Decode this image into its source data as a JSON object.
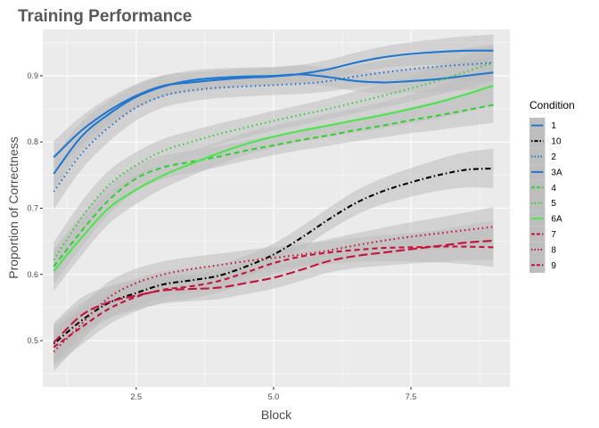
{
  "chart_data": {
    "type": "line",
    "title": "Training Performance",
    "xlabel": "Block",
    "ylabel": "Proportion of Correctness",
    "xlim": [
      0.8,
      9.3
    ],
    "ylim": [
      0.43,
      0.97
    ],
    "x_ticks": [
      {
        "value": 2.5,
        "label": "2.5"
      },
      {
        "value": 5.0,
        "label": "5.0"
      },
      {
        "value": 7.5,
        "label": "7.5"
      }
    ],
    "y_ticks": [
      {
        "value": 0.5,
        "label": "0.5"
      },
      {
        "value": 0.6,
        "label": "0.6"
      },
      {
        "value": 0.7,
        "label": "0.7"
      },
      {
        "value": 0.8,
        "label": "0.8"
      },
      {
        "value": 0.9,
        "label": "0.9"
      }
    ],
    "grid": true,
    "panel_background": "#ebebeb",
    "ribbon_color": "#bebebe",
    "legend": {
      "title": "Condition",
      "position": "right"
    },
    "x": [
      1,
      1.5,
      2,
      2.5,
      3,
      3.5,
      4,
      4.5,
      5,
      5.5,
      6,
      6.5,
      7,
      7.5,
      8,
      8.5,
      9
    ],
    "series": [
      {
        "name": "1",
        "color": "#1f78d1",
        "dash": "solid",
        "ci": 0.018,
        "values": [
          0.752,
          0.808,
          0.842,
          0.868,
          0.884,
          0.893,
          0.897,
          0.899,
          0.9,
          0.902,
          0.898,
          0.892,
          0.89,
          0.892,
          0.895,
          0.9,
          0.905
        ]
      },
      {
        "name": "10",
        "color": "#000000",
        "dash": "dotdash",
        "ci": 0.022,
        "values": [
          0.495,
          0.53,
          0.557,
          0.572,
          0.585,
          0.591,
          0.598,
          0.612,
          0.63,
          0.655,
          0.683,
          0.708,
          0.726,
          0.739,
          0.75,
          0.758,
          0.76
        ]
      },
      {
        "name": "2",
        "color": "#1f78d1",
        "dash": "dotted",
        "ci": 0.02,
        "values": [
          0.725,
          0.782,
          0.822,
          0.852,
          0.87,
          0.878,
          0.882,
          0.884,
          0.886,
          0.888,
          0.892,
          0.899,
          0.905,
          0.91,
          0.914,
          0.917,
          0.92
        ]
      },
      {
        "name": "3A",
        "color": "#1f78d1",
        "dash": "solid",
        "ci": 0.018,
        "values": [
          0.777,
          0.817,
          0.847,
          0.87,
          0.885,
          0.89,
          0.894,
          0.897,
          0.899,
          0.903,
          0.91,
          0.92,
          0.928,
          0.933,
          0.936,
          0.938,
          0.938
        ]
      },
      {
        "name": "4",
        "color": "#33d133",
        "dash": "dashed",
        "ci": 0.02,
        "values": [
          0.612,
          0.665,
          0.712,
          0.745,
          0.762,
          0.77,
          0.778,
          0.787,
          0.795,
          0.803,
          0.81,
          0.818,
          0.825,
          0.833,
          0.84,
          0.848,
          0.856
        ]
      },
      {
        "name": "5",
        "color": "#33d133",
        "dash": "dotted",
        "ci": 0.02,
        "values": [
          0.622,
          0.685,
          0.735,
          0.765,
          0.787,
          0.8,
          0.812,
          0.822,
          0.832,
          0.841,
          0.85,
          0.86,
          0.87,
          0.881,
          0.893,
          0.906,
          0.92
        ]
      },
      {
        "name": "6A",
        "color": "#4ce64c",
        "dash": "solid",
        "ci": 0.022,
        "values": [
          0.605,
          0.655,
          0.7,
          0.728,
          0.75,
          0.767,
          0.783,
          0.797,
          0.808,
          0.817,
          0.825,
          0.833,
          0.841,
          0.85,
          0.86,
          0.872,
          0.885
        ]
      },
      {
        "name": "7",
        "color": "#c8113c",
        "dash": "dashed",
        "ci": 0.022,
        "values": [
          0.49,
          0.52,
          0.548,
          0.566,
          0.577,
          0.582,
          0.59,
          0.603,
          0.617,
          0.627,
          0.633,
          0.637,
          0.64,
          0.641,
          0.642,
          0.642,
          0.641
        ]
      },
      {
        "name": "8",
        "color": "#c8113c",
        "dash": "dotted",
        "ci": 0.022,
        "values": [
          0.483,
          0.525,
          0.565,
          0.587,
          0.6,
          0.608,
          0.614,
          0.62,
          0.625,
          0.63,
          0.636,
          0.644,
          0.651,
          0.657,
          0.662,
          0.667,
          0.672
        ]
      },
      {
        "name": "9",
        "color": "#c8113c",
        "dash": "longdash",
        "ci": 0.022,
        "values": [
          0.497,
          0.538,
          0.558,
          0.568,
          0.576,
          0.578,
          0.58,
          0.587,
          0.595,
          0.607,
          0.62,
          0.628,
          0.633,
          0.638,
          0.643,
          0.648,
          0.651
        ]
      }
    ]
  }
}
